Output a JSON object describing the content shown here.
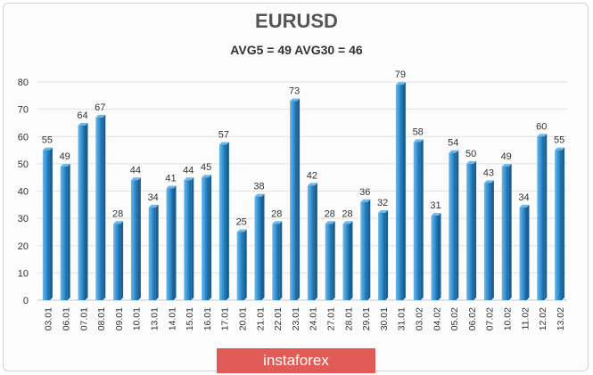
{
  "chart_data": {
    "type": "bar",
    "title": "EURUSD",
    "subtitle": "AVG5 = 49 AVG30 = 46",
    "categories": [
      "03.01",
      "06.01",
      "07.01",
      "08.01",
      "09.01",
      "10.01",
      "13.01",
      "14.01",
      "15.01",
      "16.01",
      "17.01",
      "20.01",
      "21.01",
      "22.01",
      "23.01",
      "24.01",
      "27.01",
      "28.01",
      "29.01",
      "30.01",
      "31.01",
      "03.02",
      "04.02",
      "05.02",
      "06.02",
      "07.02",
      "10.02",
      "11.02",
      "12.02",
      "13.02"
    ],
    "values": [
      55,
      49,
      64,
      67,
      28,
      44,
      34,
      41,
      44,
      45,
      57,
      25,
      38,
      28,
      73,
      42,
      28,
      28,
      36,
      32,
      79,
      58,
      31,
      54,
      50,
      43,
      49,
      34,
      60,
      55
    ],
    "ylim": [
      0,
      80
    ],
    "yticks": [
      0,
      10,
      20,
      30,
      40,
      50,
      60,
      70,
      80
    ],
    "grid": true,
    "bar_color": "#2f8fd0",
    "bar_dark": "#1a5f94",
    "bar_light": "#6fb8ea"
  },
  "watermark": "instaforex"
}
